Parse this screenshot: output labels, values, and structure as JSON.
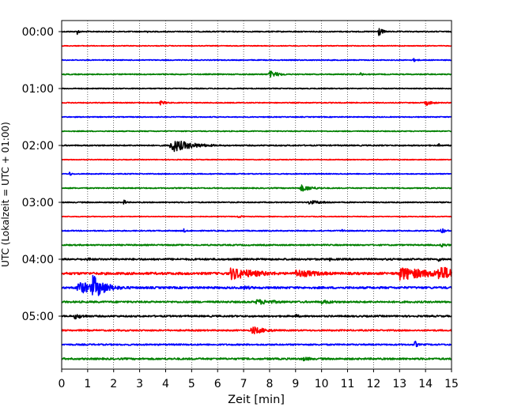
{
  "chart_data": {
    "type": "line",
    "title": "",
    "xlabel": "Zeit  [min]",
    "ylabel": "UTC (Lokalzeit = UTC + 01:00)",
    "xlim": [
      0,
      15
    ],
    "x_ticks": [
      0,
      1,
      2,
      3,
      4,
      5,
      6,
      7,
      8,
      9,
      10,
      11,
      12,
      13,
      14,
      15
    ],
    "y_ticks": [
      "00:00",
      "01:00",
      "02:00",
      "03:00",
      "04:00",
      "05:00"
    ],
    "grid": "vertical dotted at each minute",
    "trace_interval_minutes": 15,
    "color_cycle": [
      "#000000",
      "#ff0000",
      "#0000ff",
      "#008000"
    ],
    "traces": [
      {
        "start": "00:00",
        "noise": 0.7,
        "events": [
          {
            "t": 0.6,
            "amp": 4,
            "dur": 0.1
          },
          {
            "t": 3.3,
            "amp": 3,
            "dur": 0.1
          },
          {
            "t": 12.2,
            "amp": 7,
            "dur": 0.15
          }
        ]
      },
      {
        "start": "00:15",
        "noise": 0.5,
        "events": []
      },
      {
        "start": "00:30",
        "noise": 0.6,
        "events": [
          {
            "t": 13.5,
            "amp": 3,
            "dur": 0.2
          }
        ]
      },
      {
        "start": "00:45",
        "noise": 0.7,
        "events": [
          {
            "t": 8.0,
            "amp": 5,
            "dur": 0.4
          },
          {
            "t": 11.5,
            "amp": 3,
            "dur": 0.1
          }
        ]
      },
      {
        "start": "01:00",
        "noise": 0.6,
        "events": []
      },
      {
        "start": "01:15",
        "noise": 0.6,
        "events": [
          {
            "t": 3.8,
            "amp": 3,
            "dur": 0.3
          },
          {
            "t": 14.0,
            "amp": 4,
            "dur": 0.3
          }
        ]
      },
      {
        "start": "01:30",
        "noise": 0.6,
        "events": []
      },
      {
        "start": "01:45",
        "noise": 0.6,
        "events": []
      },
      {
        "start": "02:00",
        "noise": 0.8,
        "events": [
          {
            "t": 4.2,
            "amp": 10,
            "dur": 0.8
          },
          {
            "t": 14.5,
            "amp": 3,
            "dur": 0.1
          }
        ]
      },
      {
        "start": "02:15",
        "noise": 0.5,
        "events": []
      },
      {
        "start": "02:30",
        "noise": 0.6,
        "events": [
          {
            "t": 0.3,
            "amp": 3,
            "dur": 0.1
          }
        ]
      },
      {
        "start": "02:45",
        "noise": 0.7,
        "events": [
          {
            "t": 9.2,
            "amp": 5,
            "dur": 0.5
          }
        ]
      },
      {
        "start": "03:00",
        "noise": 0.7,
        "events": [
          {
            "t": 2.4,
            "amp": 4,
            "dur": 0.1
          },
          {
            "t": 9.5,
            "amp": 3,
            "dur": 0.8
          }
        ]
      },
      {
        "start": "03:15",
        "noise": 0.5,
        "events": [
          {
            "t": 6.8,
            "amp": 2,
            "dur": 0.2
          }
        ]
      },
      {
        "start": "03:30",
        "noise": 0.7,
        "events": [
          {
            "t": 4.7,
            "amp": 3,
            "dur": 0.1
          },
          {
            "t": 10.8,
            "amp": 3,
            "dur": 0.1
          },
          {
            "t": 14.6,
            "amp": 4,
            "dur": 0.2
          }
        ]
      },
      {
        "start": "03:45",
        "noise": 0.9,
        "events": [
          {
            "t": 14.6,
            "amp": 3,
            "dur": 0.3
          }
        ]
      },
      {
        "start": "04:00",
        "noise": 1.2,
        "events": [
          {
            "t": 1.0,
            "amp": 3,
            "dur": 0.2
          },
          {
            "t": 10.3,
            "amp": 3,
            "dur": 0.1
          },
          {
            "t": 14.5,
            "amp": 3,
            "dur": 0.2
          }
        ]
      },
      {
        "start": "04:15",
        "noise": 1.6,
        "events": [
          {
            "t": 6.5,
            "amp": 9,
            "dur": 1.2
          },
          {
            "t": 9.0,
            "amp": 6,
            "dur": 1.2
          },
          {
            "t": 13.0,
            "amp": 10,
            "dur": 1.5
          },
          {
            "t": 14.5,
            "amp": 12,
            "dur": 0.8
          }
        ]
      },
      {
        "start": "04:30",
        "noise": 1.4,
        "events": [
          {
            "t": 0.6,
            "amp": 9,
            "dur": 1.2
          },
          {
            "t": 1.2,
            "amp": 18,
            "dur": 0.5
          },
          {
            "t": 7.0,
            "amp": 3,
            "dur": 0.6
          }
        ]
      },
      {
        "start": "04:45",
        "noise": 1.2,
        "events": [
          {
            "t": 7.5,
            "amp": 4,
            "dur": 1.0
          },
          {
            "t": 10.0,
            "amp": 3,
            "dur": 0.8
          }
        ]
      },
      {
        "start": "05:00",
        "noise": 1.1,
        "events": [
          {
            "t": 0.5,
            "amp": 4,
            "dur": 0.5
          },
          {
            "t": 9.0,
            "amp": 3,
            "dur": 0.2
          }
        ]
      },
      {
        "start": "05:15",
        "noise": 1.0,
        "events": [
          {
            "t": 7.3,
            "amp": 6,
            "dur": 0.6
          }
        ]
      },
      {
        "start": "05:30",
        "noise": 1.0,
        "events": [
          {
            "t": 13.6,
            "amp": 6,
            "dur": 0.1
          }
        ]
      },
      {
        "start": "05:45",
        "noise": 1.2,
        "events": [
          {
            "t": 9.3,
            "amp": 3,
            "dur": 0.5
          }
        ]
      }
    ]
  }
}
